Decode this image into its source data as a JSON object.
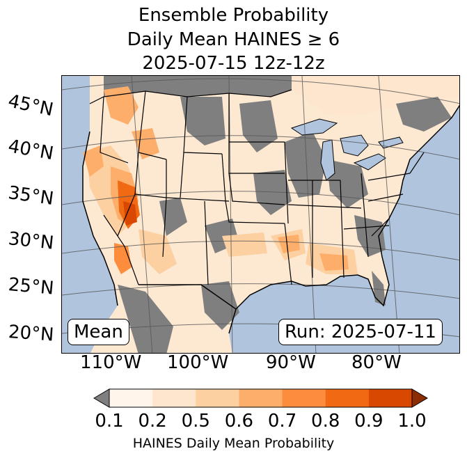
{
  "title": {
    "line1": "Ensemble Probability",
    "line2": "Daily Mean HAINES ≥ 6",
    "line3": "2025-07-15 12z-12z"
  },
  "map": {
    "region": "Contiguous United States",
    "lat_labels": [
      "45°N",
      "40°N",
      "35°N",
      "30°N",
      "25°N",
      "20°N"
    ],
    "lon_labels": [
      "110°W",
      "100°W",
      "90°W",
      "80°W"
    ],
    "colors": {
      "ocean": "#b0c4de",
      "missing": "#7f7f7f",
      "borders": "#000000",
      "gridlines": "#555555"
    }
  },
  "annotations": {
    "stat": "Mean",
    "run": "Run: 2025-07-11"
  },
  "colorbar": {
    "ticks": [
      "0.1",
      "0.2",
      "0.5",
      "0.6",
      "0.7",
      "0.8",
      "0.9",
      "1.0"
    ],
    "colors": [
      "#fff5eb",
      "#fee6ce",
      "#fdd0a2",
      "#fdae6b",
      "#fd8d3c",
      "#f16913",
      "#d94801",
      "#8c2d04"
    ],
    "under_color": "#7f7f7f",
    "label": "HAINES Daily Mean Probability"
  }
}
